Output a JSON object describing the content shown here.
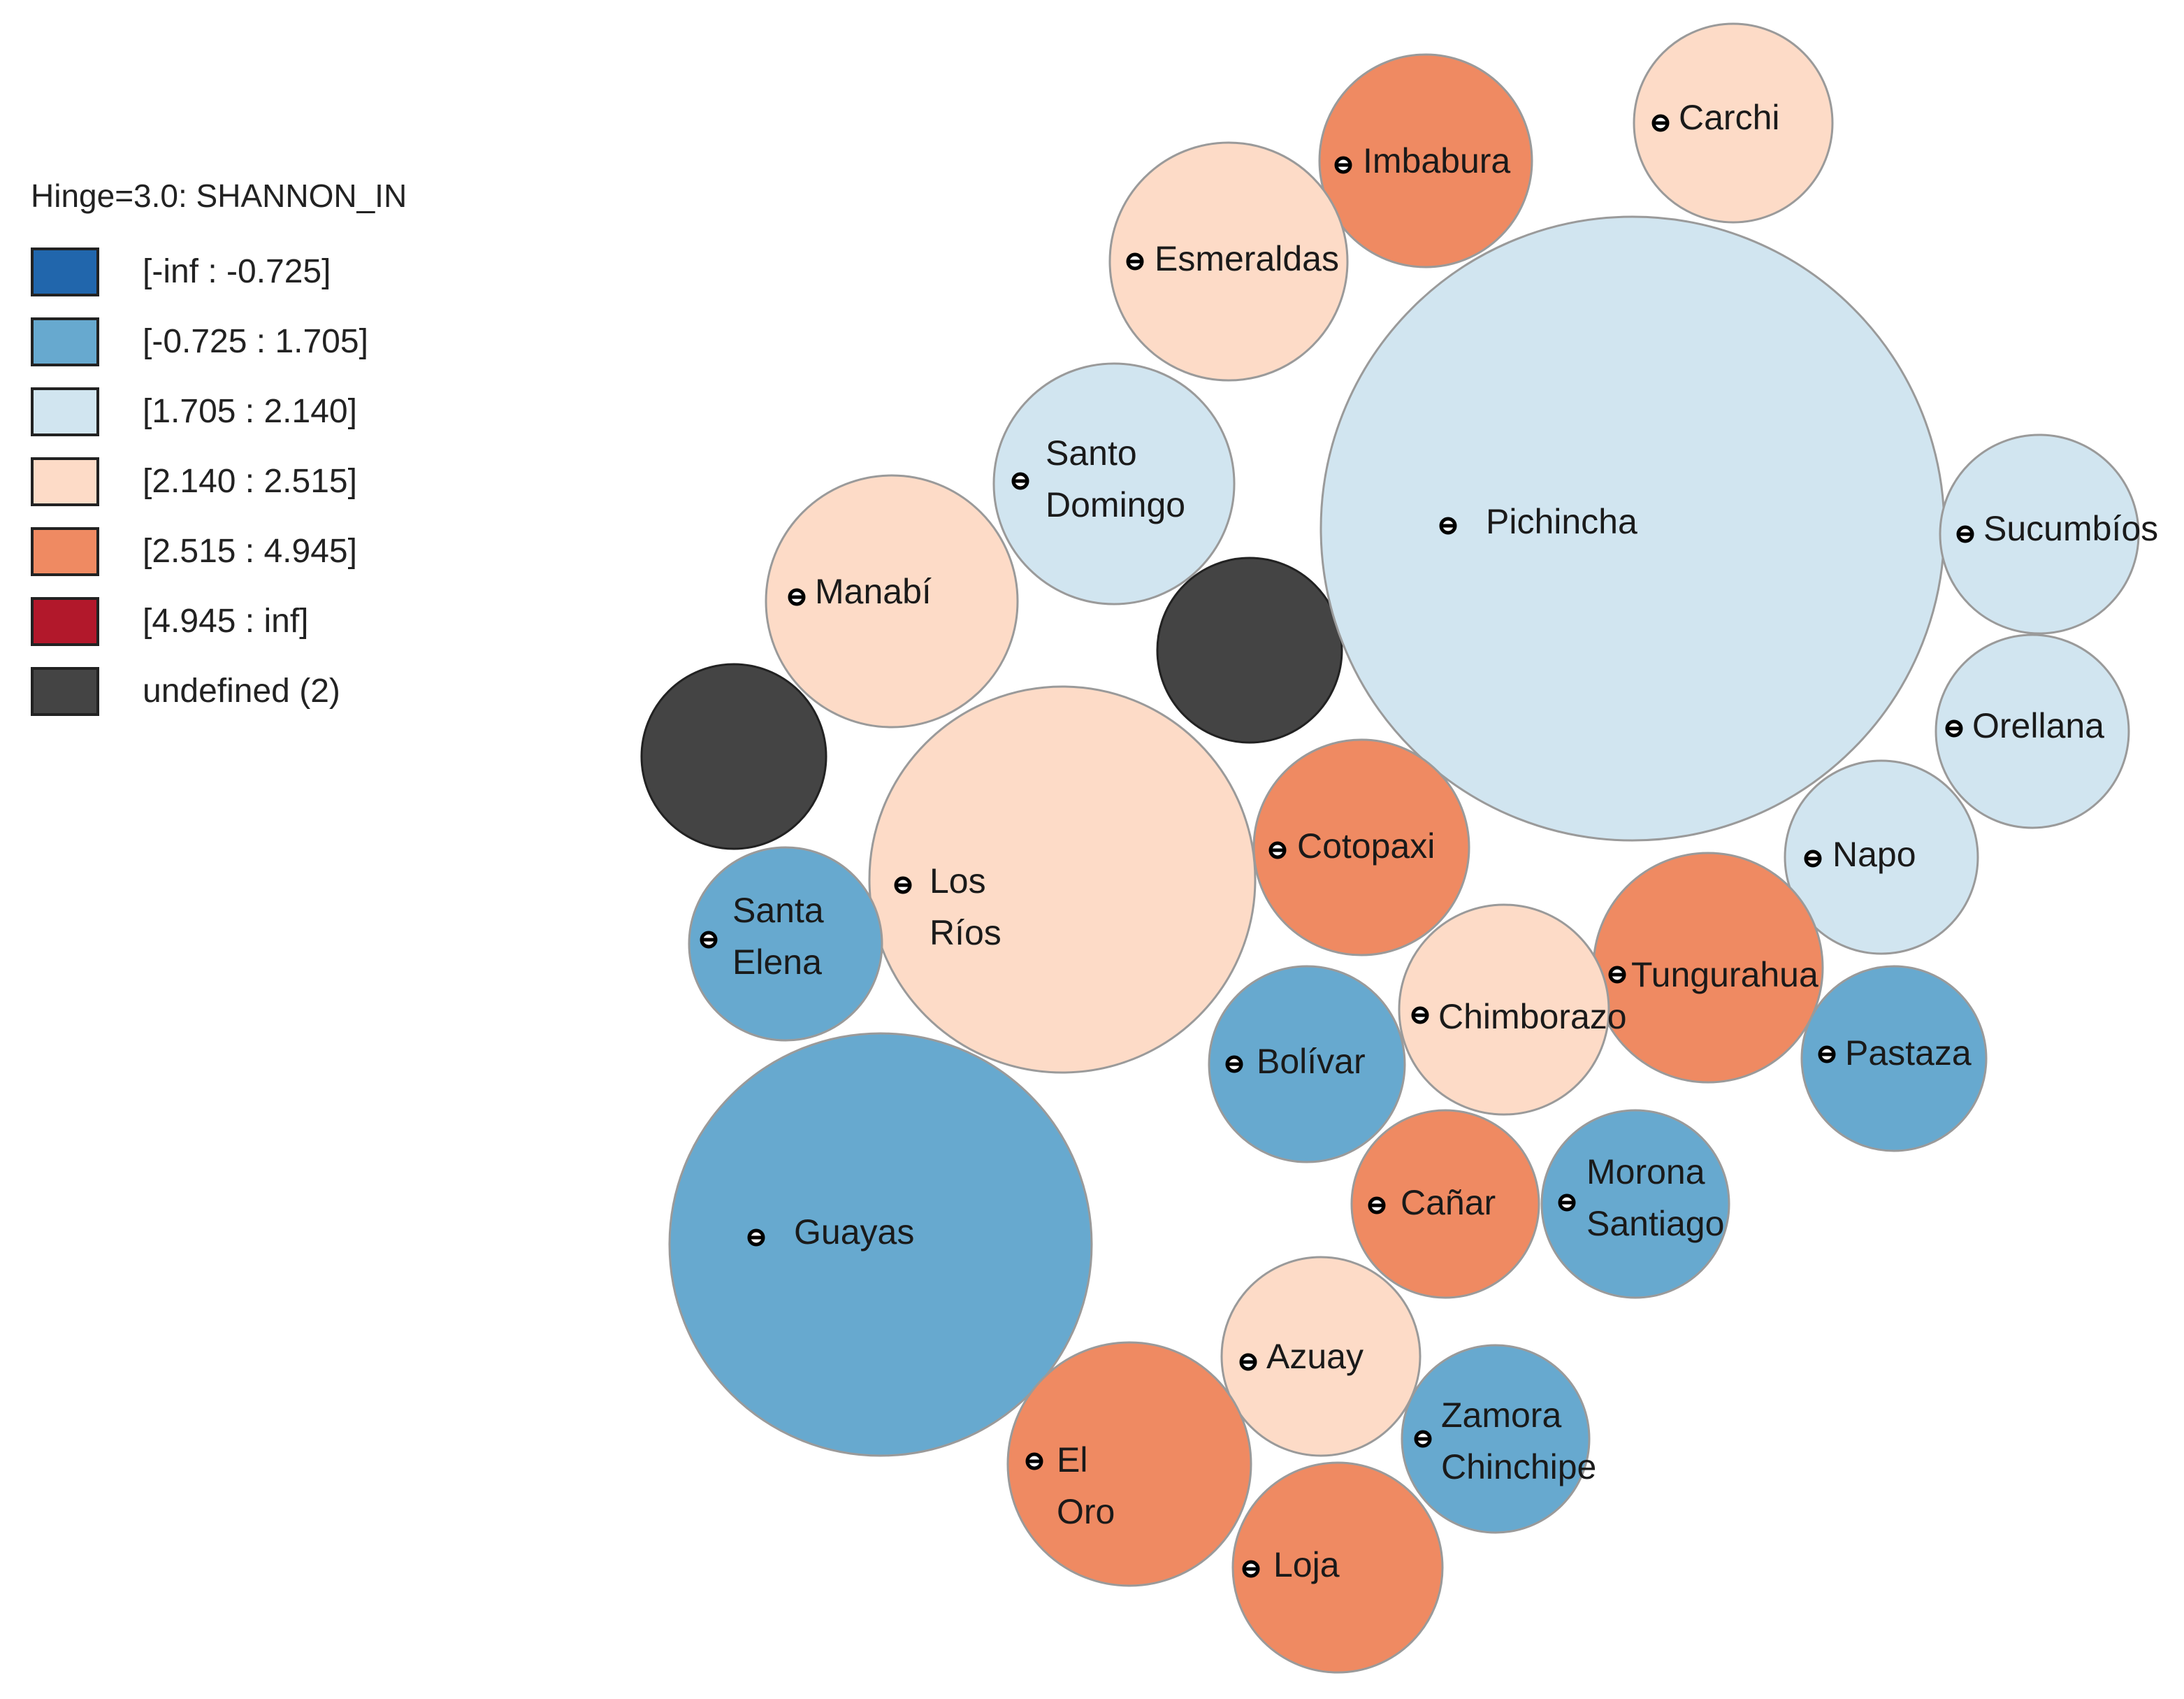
{
  "legend": {
    "title": "Hinge=3.0: SHANNON_IN",
    "classes": [
      {
        "label": "[-inf : -0.725]",
        "color": "#2166ac"
      },
      {
        "label": "[-0.725 : 1.705]",
        "color": "#67a9cf"
      },
      {
        "label": "[1.705 : 2.140]",
        "color": "#d1e5f0"
      },
      {
        "label": "[2.140 : 2.515]",
        "color": "#fddbc7"
      },
      {
        "label": "[2.515 : 4.945]",
        "color": "#ef8a62"
      },
      {
        "label": "[4.945 : inf]",
        "color": "#b2182b"
      },
      {
        "label": "undefined (2)",
        "color": "#444444"
      }
    ]
  },
  "regions": [
    {
      "name": "Carchi",
      "class": 3
    },
    {
      "name": "Imbabura",
      "class": 4
    },
    {
      "name": "Esmeraldas",
      "class": 3
    },
    {
      "name": "Pichincha",
      "class": 2
    },
    {
      "name": "Santo Domingo",
      "class": 2
    },
    {
      "name": "Sucumbíos",
      "class": 2
    },
    {
      "name": "Manabí",
      "class": 3
    },
    {
      "name": "Orellana",
      "class": 2
    },
    {
      "name": "Los Ríos",
      "class": 3
    },
    {
      "name": "Cotopaxi",
      "class": 4
    },
    {
      "name": "Napo",
      "class": 2
    },
    {
      "name": "Santa Elena",
      "class": 1
    },
    {
      "name": "Tungurahua",
      "class": 4
    },
    {
      "name": "Chimborazo",
      "class": 3
    },
    {
      "name": "Bolívar",
      "class": 1
    },
    {
      "name": "Pastaza",
      "class": 1
    },
    {
      "name": "Guayas",
      "class": 1
    },
    {
      "name": "Cañar",
      "class": 4
    },
    {
      "name": "Morona Santiago",
      "class": 1
    },
    {
      "name": "Azuay",
      "class": 3
    },
    {
      "name": "Zamora Chinchipe",
      "class": 1
    },
    {
      "name": "El Oro",
      "class": 4
    },
    {
      "name": "Loja",
      "class": 4
    }
  ],
  "undefined_regions": 2
}
